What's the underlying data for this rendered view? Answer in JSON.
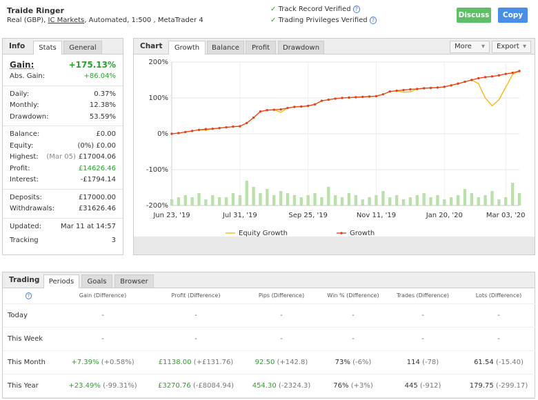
{
  "header": {
    "title": "Traide Ringer",
    "account": "Real (GBP),",
    "broker": "IC Markets",
    "details": ", Automated, 1:500 , MetaTrader 4",
    "verifications": [
      "Track Record Verified",
      "Trading Privileges Verified"
    ],
    "buttons": [
      "Discuss",
      "Copy"
    ]
  },
  "info": {
    "title": "Info",
    "tabs": [
      "Stats",
      "General"
    ],
    "gain": {
      "label": "Gain:",
      "value": "+175.13%",
      "color": "#27a327"
    },
    "groups": [
      [
        {
          "label": "Abs. Gain:",
          "value": "+86.04%",
          "color": "#27a327"
        }
      ],
      [
        {
          "label": "Daily:",
          "value": "0.37%"
        },
        {
          "label": "Monthly:",
          "value": "12.38%"
        },
        {
          "label": "Drawdown:",
          "value": "53.59%"
        }
      ],
      [
        {
          "label": "Balance:",
          "value": "£0.00"
        },
        {
          "label": "Equity:",
          "value": "(0%) £0.00"
        },
        {
          "label": "Highest:",
          "note": "(Mar 05)",
          "value": "£17004.06"
        },
        {
          "label": "Profit:",
          "value": "£14626.46",
          "color": "#27a327"
        },
        {
          "label": "Interest:",
          "value": "-£1794.14"
        }
      ],
      [
        {
          "label": "Deposits:",
          "value": "£17000.00"
        },
        {
          "label": "Withdrawals:",
          "value": "£31626.46"
        }
      ],
      [
        {
          "label": "Updated:",
          "value": "Mar 11 at 14:57"
        },
        {
          "label": "Tracking",
          "value": "3"
        }
      ]
    ]
  },
  "chart_panel": {
    "title": "Chart",
    "tabs": [
      "Growth",
      "Balance",
      "Profit",
      "Drawdown"
    ],
    "menus": [
      "More",
      "Export"
    ]
  },
  "chart_data": {
    "type": "line",
    "categories": [
      "Jun 23, '19",
      null,
      null,
      null,
      null,
      null,
      null,
      null,
      null,
      null,
      "Jul 31, '19",
      null,
      null,
      null,
      null,
      null,
      null,
      null,
      null,
      null,
      "Sep 25, '19",
      null,
      null,
      null,
      null,
      null,
      null,
      null,
      null,
      null,
      "Nov 11, '19",
      null,
      null,
      null,
      null,
      null,
      null,
      null,
      null,
      null,
      "Jan 20, '20",
      null,
      null,
      null,
      null,
      null,
      null,
      null,
      null,
      "Mar 03, '20",
      null,
      null
    ],
    "ylim": [
      -200,
      200
    ],
    "yticks": [
      {
        "value": 200,
        "label": "200%"
      },
      {
        "value": 100,
        "label": "100%"
      },
      {
        "value": 0,
        "label": "0%"
      },
      {
        "value": -100,
        "label": "-100%"
      },
      {
        "value": -200,
        "label": "-200%"
      }
    ],
    "grid": true,
    "series": [
      {
        "name": "Equity Growth",
        "color": "#f5b400",
        "markers": false,
        "values": [
          0,
          2,
          5,
          8,
          11,
          10,
          14,
          16,
          18,
          20,
          21,
          30,
          45,
          62,
          66,
          67,
          60,
          72,
          75,
          76,
          78,
          82,
          92,
          95,
          98,
          100,
          101,
          102,
          103,
          104,
          105,
          110,
          118,
          120,
          116,
          117,
          125,
          127,
          128,
          129,
          131,
          135,
          140,
          145,
          150,
          140,
          100,
          78,
          95,
          130,
          165,
          175
        ]
      },
      {
        "name": "Growth",
        "color": "#e8411a",
        "markers": true,
        "values": [
          0,
          2,
          5,
          8,
          11,
          13,
          14,
          16,
          18,
          20,
          21,
          30,
          45,
          62,
          66,
          67,
          68,
          72,
          75,
          76,
          78,
          82,
          92,
          95,
          98,
          100,
          101,
          102,
          103,
          104,
          105,
          110,
          118,
          120,
          122,
          124,
          125,
          127,
          128,
          129,
          131,
          135,
          140,
          145,
          150,
          155,
          158,
          160,
          163,
          167,
          170,
          175
        ]
      }
    ],
    "bars": {
      "color": "#b9e1a9",
      "values": [
        3,
        4,
        5,
        4,
        6,
        3,
        5,
        4,
        4,
        6,
        5,
        12,
        9,
        6,
        8,
        5,
        7,
        6,
        5,
        4,
        5,
        6,
        4,
        9,
        5,
        4,
        6,
        5,
        3,
        4,
        5,
        7,
        4,
        5,
        3,
        4,
        5,
        6,
        4,
        5,
        3,
        4,
        5,
        8,
        6,
        4,
        5,
        7,
        3,
        4,
        11,
        6
      ]
    }
  },
  "trading": {
    "title": "Trading",
    "tabs": [
      "Periods",
      "Goals",
      "Browser"
    ],
    "columns": [
      {
        "name": "Gain (Difference)",
        "color": "#27a327"
      },
      {
        "name": "Profit (Difference)",
        "color": "#27a327"
      },
      {
        "name": "Pips (Difference)",
        "color": "#27a327"
      },
      {
        "name": "Win % (Difference)",
        "color": "#333333"
      },
      {
        "name": "Trades (Difference)",
        "color": "#333333"
      },
      {
        "name": "Lots (Difference)",
        "color": "#333333"
      }
    ],
    "rows": [
      {
        "label": "Today",
        "cells": [
          "-",
          "-",
          "-",
          "-",
          "-",
          "-"
        ]
      },
      {
        "label": "This Week",
        "cells": [
          "-",
          "-",
          "-",
          "-",
          "-",
          "-"
        ]
      },
      {
        "label": "This Month",
        "cells": [
          {
            "value": "+7.39%",
            "diff": "(+0.58%)"
          },
          {
            "value": "£1138.00",
            "diff": "(+£131.76)"
          },
          {
            "value": "92.50",
            "diff": "(+142.8)"
          },
          {
            "value": "73%",
            "diff": "(-6%)"
          },
          {
            "value": "114",
            "diff": "(-78)"
          },
          {
            "value": "61.54",
            "diff": "(-15.40)"
          }
        ]
      },
      {
        "label": "This Year",
        "cells": [
          {
            "value": "+23.49%",
            "diff": "(-99.31%)"
          },
          {
            "value": "£3270.76",
            "diff": "(-£8084.94)"
          },
          {
            "value": "454.30",
            "diff": "(-2324.3)"
          },
          {
            "value": "76%",
            "diff": "(+3%)"
          },
          {
            "value": "445",
            "diff": "(-912)"
          },
          {
            "value": "179.75",
            "diff": "(-299.17)"
          }
        ]
      }
    ]
  }
}
